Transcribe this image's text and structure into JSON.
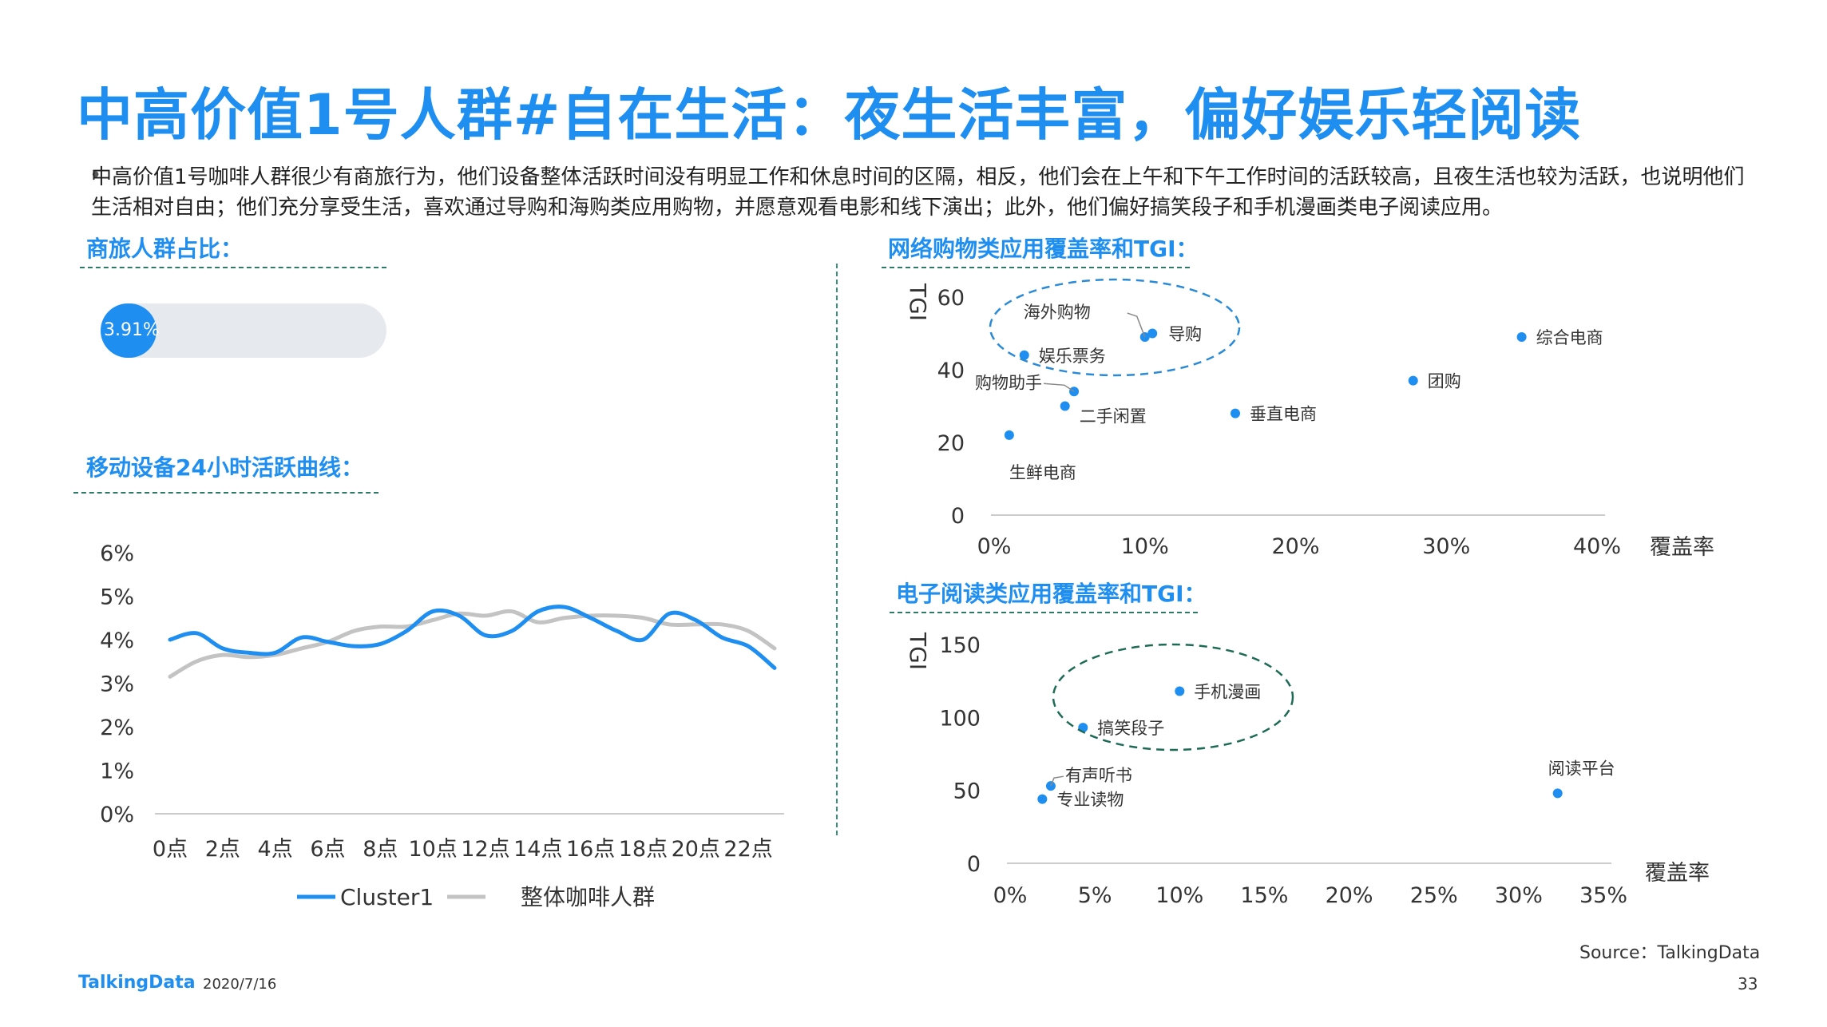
{
  "title": "中高价值1号人群#自在生活：夜生活丰富，偏好娱乐轻阅读",
  "bullet": "中高价值1号咖啡人群很少有商旅行为，他们设备整体活跃时间没有明显工作和休息时间的区隔，相反，他们会在上午和下午工作时间的活跃较高，且夜生活也较为活跃，也说明他们生活相对自由；他们充分享受生活，喜欢通过导购和海购类应用购物，并愿意观看电影和线下演出；此外，他们偏好搞笑段子和手机漫画类电子阅读应用。",
  "sections": {
    "business": "商旅人群占比：",
    "activity": "移动设备24小时活跃曲线：",
    "shopping": "网络购物类应用覆盖率和TGI：",
    "reading": "电子阅读类应用覆盖率和TGI："
  },
  "business_bar": {
    "value": 0.0391,
    "label": "3.91%"
  },
  "colors": {
    "accent": "#1f8ef1",
    "gray": "#c3c3c3",
    "track": "#e6e9ee",
    "ellipse_blue": "#2b8ad6",
    "ellipse_green": "#1e6b55"
  },
  "chart_data": [
    {
      "id": "activity",
      "type": "line",
      "categories": [
        "0点",
        "1点",
        "2点",
        "3点",
        "4点",
        "5点",
        "6点",
        "7点",
        "8点",
        "9点",
        "10点",
        "11点",
        "12点",
        "13点",
        "14点",
        "15点",
        "16点",
        "17点",
        "18点",
        "19点",
        "20点",
        "21点",
        "22点",
        "23点"
      ],
      "x_tick_labels": [
        "0点",
        "2点",
        "4点",
        "6点",
        "8点",
        "10点",
        "12点",
        "14点",
        "16点",
        "18点",
        "20点",
        "22点"
      ],
      "y_tick_labels": [
        "0%",
        "1%",
        "2%",
        "3%",
        "4%",
        "5%",
        "6%"
      ],
      "ylim": [
        0,
        6
      ],
      "series": [
        {
          "name": "Cluster1",
          "color": "#1f8ef1",
          "values": [
            4.0,
            4.15,
            3.8,
            3.7,
            3.7,
            4.05,
            3.95,
            3.85,
            3.9,
            4.2,
            4.65,
            4.55,
            4.1,
            4.2,
            4.65,
            4.75,
            4.5,
            4.2,
            4.0,
            4.6,
            4.45,
            4.05,
            3.85,
            3.35
          ]
        },
        {
          "name": "整体咖啡人群",
          "color": "#c3c3c3",
          "values": [
            3.15,
            3.5,
            3.65,
            3.6,
            3.65,
            3.8,
            3.95,
            4.2,
            4.3,
            4.3,
            4.45,
            4.6,
            4.55,
            4.65,
            4.4,
            4.5,
            4.55,
            4.55,
            4.5,
            4.35,
            4.35,
            4.35,
            4.2,
            3.8
          ]
        }
      ]
    },
    {
      "id": "shopping",
      "type": "scatter",
      "xlabel": "覆盖率",
      "ylabel": "TGI",
      "xlim": [
        0,
        40
      ],
      "ylim": [
        0,
        60
      ],
      "x_tick_labels": [
        "0%",
        "10%",
        "20%",
        "30%",
        "40%"
      ],
      "y_tick_labels": [
        "0",
        "20",
        "40",
        "60"
      ],
      "points": [
        {
          "label": "海外购物",
          "x": 10,
          "y": 49
        },
        {
          "label": "导购",
          "x": 10.5,
          "y": 50
        },
        {
          "label": "娱乐票务",
          "x": 2,
          "y": 44
        },
        {
          "label": "购物助手",
          "x": 5.3,
          "y": 34
        },
        {
          "label": "二手闲置",
          "x": 4.7,
          "y": 30
        },
        {
          "label": "生鲜电商",
          "x": 1,
          "y": 22
        },
        {
          "label": "垂直电商",
          "x": 16,
          "y": 28
        },
        {
          "label": "团购",
          "x": 27.8,
          "y": 37
        },
        {
          "label": "综合电商",
          "x": 35,
          "y": 49
        }
      ]
    },
    {
      "id": "reading",
      "type": "scatter",
      "xlabel": "覆盖率",
      "ylabel": "TGI",
      "xlim": [
        0,
        35
      ],
      "ylim": [
        0,
        150
      ],
      "x_tick_labels": [
        "0%",
        "5%",
        "10%",
        "15%",
        "20%",
        "25%",
        "30%",
        "35%"
      ],
      "y_tick_labels": [
        "0",
        "50",
        "100",
        "150"
      ],
      "points": [
        {
          "label": "手机漫画",
          "x": 10,
          "y": 118
        },
        {
          "label": "搞笑段子",
          "x": 4.3,
          "y": 93
        },
        {
          "label": "有声听书",
          "x": 2.4,
          "y": 53
        },
        {
          "label": "专业读物",
          "x": 1.9,
          "y": 44
        },
        {
          "label": "阅读平台",
          "x": 32.3,
          "y": 48
        }
      ]
    }
  ],
  "source": "Source：TalkingData",
  "footer": {
    "logo": "TalkingData",
    "date": "2020/7/16",
    "page": "33"
  }
}
